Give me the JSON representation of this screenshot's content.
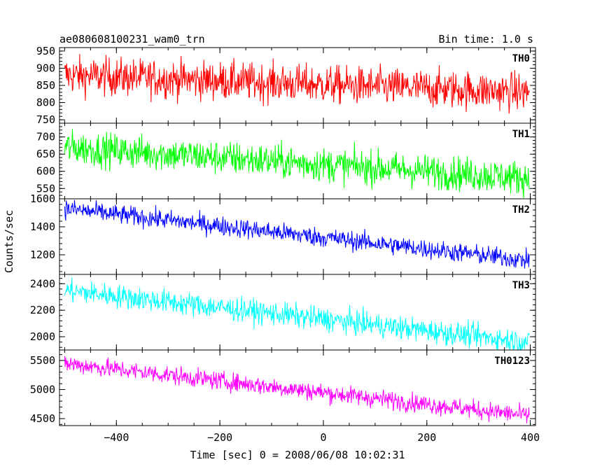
{
  "chart_data": {
    "type": "line",
    "title": "ae080608100231_wam0_trn",
    "subtitle": "Bin time: 1.0 s",
    "xlabel": "Time [sec] 0 = 2008/06/08 10:02:31",
    "ylabel": "Counts/sec",
    "xlim": [
      -510,
      410
    ],
    "xticks": [
      -400,
      -200,
      0,
      200,
      400
    ],
    "bin_time_s": 1.0,
    "grid": false,
    "panels": [
      {
        "name": "TH0",
        "color": "#ff0000",
        "ylim": [
          740,
          960
        ],
        "yticks": [
          750,
          800,
          850,
          900,
          950
        ],
        "trend_start": 880,
        "trend_end": 830,
        "noise": 28
      },
      {
        "name": "TH1",
        "color": "#00ff00",
        "ylim": [
          520,
          740
        ],
        "yticks": [
          550,
          600,
          650,
          700
        ],
        "trend_start": 670,
        "trend_end": 580,
        "noise": 25
      },
      {
        "name": "TH2",
        "color": "#0000ff",
        "ylim": [
          1060,
          1600
        ],
        "yticks": [
          1200,
          1400,
          1600
        ],
        "trend_start": 1530,
        "trend_end": 1160,
        "noise": 35
      },
      {
        "name": "TH3",
        "color": "#00ffff",
        "ylim": [
          1900,
          2470
        ],
        "yticks": [
          2000,
          2200,
          2400
        ],
        "trend_start": 2350,
        "trend_end": 1960,
        "noise": 45
      },
      {
        "name": "TH0123",
        "color": "#ff00ff",
        "ylim": [
          4380,
          5680
        ],
        "yticks": [
          4500,
          5000,
          5500
        ],
        "trend_start": 5450,
        "trend_end": 4550,
        "noise": 80
      }
    ]
  }
}
